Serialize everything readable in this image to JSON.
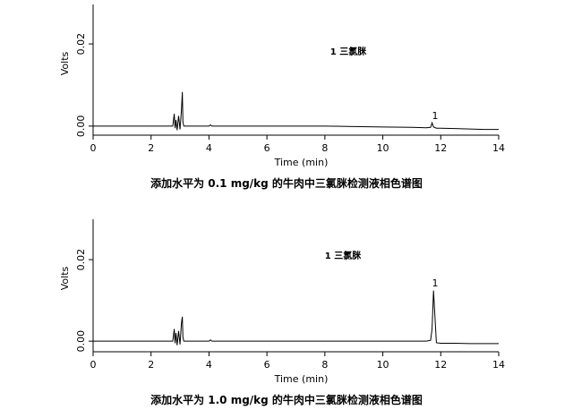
{
  "chart_data": [
    {
      "type": "line",
      "title": "添加水平为 0.1 mg/kg 的牛肉中三氯脒检测液相色谱图",
      "x_label": "Time (min)",
      "y_label": "Volts",
      "annotations": [
        "1 三氯脒",
        "1"
      ],
      "color": "#000000",
      "x": [
        0,
        0.5,
        1,
        1.5,
        2,
        2.5,
        2.75,
        2.8,
        2.83,
        2.86,
        2.9,
        2.95,
        3.0,
        3.05,
        3.08,
        3.1,
        3.13,
        3.2,
        3.5,
        4.0,
        4.05,
        4.1,
        5,
        6,
        7,
        8,
        9,
        10,
        11,
        11.5,
        11.65,
        11.7,
        11.75,
        11.85,
        12,
        12.5,
        13,
        13.5,
        14
      ],
      "values": [
        0,
        0,
        0,
        0,
        0,
        0,
        0,
        0.003,
        -0.0005,
        0.0015,
        -0.001,
        0.0025,
        -0.0008,
        0.004,
        0.0083,
        0.001,
        0,
        0,
        0,
        0,
        0.0003,
        0,
        0,
        0,
        0,
        0,
        -0.0001,
        -0.0002,
        -0.0003,
        -0.0004,
        -0.0003,
        0.0008,
        -0.0002,
        -0.0005,
        -0.0005,
        -0.0006,
        -0.0007,
        -0.0008,
        -0.0008
      ],
      "xlim": [
        0,
        14
      ],
      "xticks": [
        0,
        2,
        4,
        6,
        8,
        10,
        12,
        14
      ],
      "ylim": [
        -0.0022,
        0.0296
      ],
      "yticks": [
        {
          "value": 0,
          "label": "0.00"
        },
        {
          "value": 0.02,
          "label": "0.02"
        }
      ]
    },
    {
      "type": "line",
      "title": "添加水平为 1.0 mg/kg 的牛肉中三氯脒检测液相色谱图",
      "x_label": "Time (min)",
      "y_label": "Volts",
      "annotations": [
        "1 三氯脒",
        "1"
      ],
      "color": "#000000",
      "x": [
        0,
        0.5,
        1,
        1.5,
        2,
        2.5,
        2.75,
        2.8,
        2.83,
        2.86,
        2.9,
        2.95,
        3.0,
        3.05,
        3.08,
        3.1,
        3.13,
        3.2,
        3.5,
        4.0,
        4.05,
        4.1,
        5,
        6,
        7,
        8,
        9,
        10,
        11,
        11.5,
        11.65,
        11.7,
        11.75,
        11.85,
        12,
        12.5,
        13,
        13.5,
        14
      ],
      "values": [
        0,
        0,
        0,
        0,
        0,
        0,
        0,
        0.003,
        -0.0005,
        0.002,
        -0.001,
        0.0025,
        -0.0008,
        0.0045,
        0.006,
        0.001,
        0,
        0,
        0,
        0,
        0.0003,
        0,
        0,
        0,
        0,
        0,
        0,
        0,
        0,
        0,
        0.0002,
        0.003,
        0.0124,
        -0.0004,
        -0.0005,
        -0.0005,
        -0.0006,
        -0.0006,
        -0.0006
      ],
      "xlim": [
        0,
        14
      ],
      "xticks": [
        0,
        2,
        4,
        6,
        8,
        10,
        12,
        14
      ],
      "ylim": [
        -0.0026,
        0.0299
      ],
      "yticks": [
        {
          "value": 0,
          "label": "0.00"
        },
        {
          "value": 0.02,
          "label": "0.02"
        }
      ]
    }
  ]
}
